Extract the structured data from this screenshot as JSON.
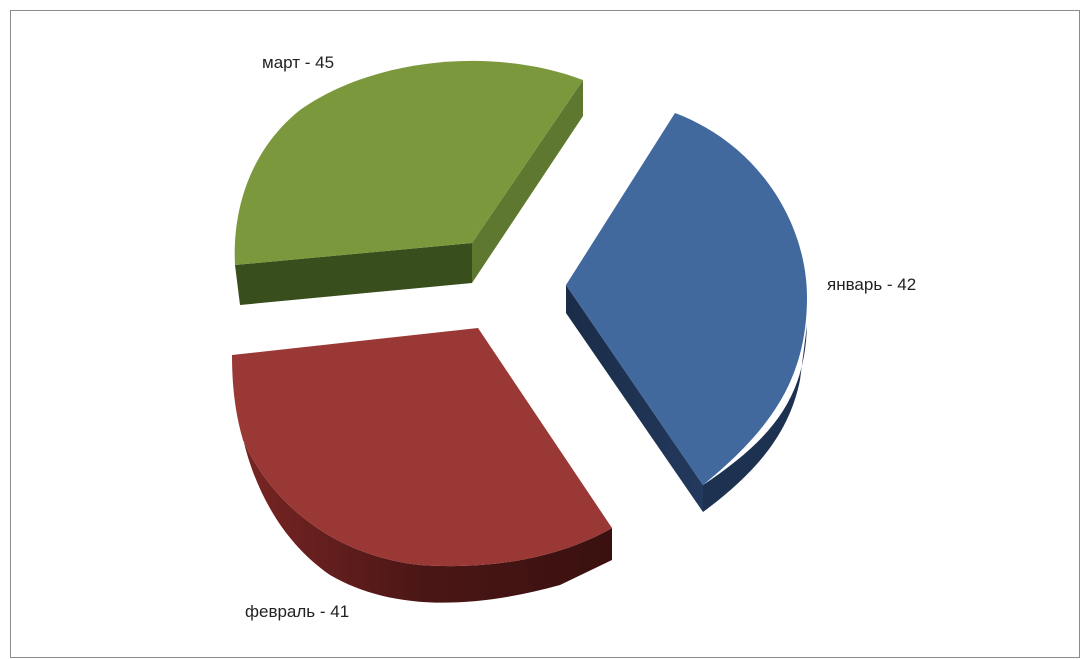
{
  "chart_data": {
    "type": "pie",
    "style": "3d-exploded",
    "slices": [
      {
        "category": "январь",
        "value": 42,
        "label": "январь - 42",
        "color": "#41699e"
      },
      {
        "category": "февраль",
        "value": 41,
        "label": "февраль - 41",
        "color": "#9a3836"
      },
      {
        "category": "март",
        "value": 45,
        "label": "март - 45",
        "color": "#7b983d"
      }
    ],
    "legend": "none",
    "data_labels": "outside"
  }
}
